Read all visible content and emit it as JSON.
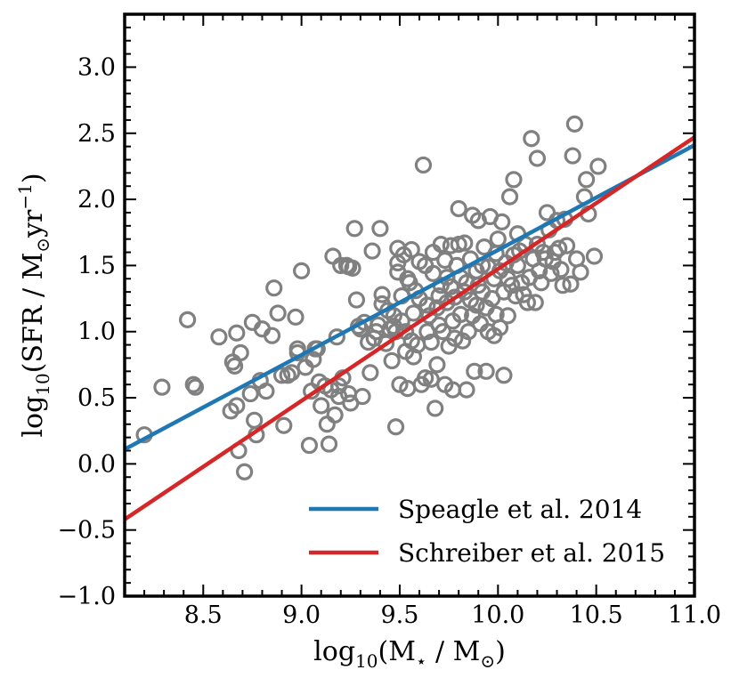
{
  "chart_data": {
    "type": "scatter",
    "xlabel": {
      "base": "log",
      "sub": "10",
      "body": "(M",
      "star": "⋆",
      "mid": " / M",
      "sun": "⊙",
      "end": ")"
    },
    "ylabel": {
      "base": "log",
      "sub": "10",
      "body": "(SFR / M",
      "sun": "⊙",
      "yr": "yr",
      "exp": "−1",
      "end": ")"
    },
    "xlim": [
      8.1,
      11.0
    ],
    "ylim": [
      -1.0,
      3.4
    ],
    "x_ticks": [
      {
        "value": 8.5,
        "label": "8.5"
      },
      {
        "value": 9.0,
        "label": "9.0"
      },
      {
        "value": 9.5,
        "label": "9.5"
      },
      {
        "value": 10.0,
        "label": "10.0"
      },
      {
        "value": 10.5,
        "label": "10.5"
      },
      {
        "value": 11.0,
        "label": "11.0"
      }
    ],
    "y_ticks": [
      {
        "value": -1.0,
        "label": "−1.0"
      },
      {
        "value": -0.5,
        "label": "−0.5"
      },
      {
        "value": 0.0,
        "label": "0.0"
      },
      {
        "value": 0.5,
        "label": "0.5"
      },
      {
        "value": 1.0,
        "label": "1.0"
      },
      {
        "value": 1.5,
        "label": "1.5"
      },
      {
        "value": 2.0,
        "label": "2.0"
      },
      {
        "value": 2.5,
        "label": "2.5"
      },
      {
        "value": 3.0,
        "label": "3.0"
      }
    ],
    "minor_step": 0.1,
    "marker_color": "#808080",
    "series": [
      {
        "name": "Speagle et al. 2014",
        "type": "line",
        "color": "#1f77b4",
        "x": [
          8.1,
          11.0
        ],
        "y": [
          0.11,
          2.41
        ]
      },
      {
        "name": "Schreiber et al. 2015",
        "type": "line",
        "color": "#d62728",
        "x": [
          8.1,
          11.0
        ],
        "y": [
          -0.42,
          2.47
        ]
      }
    ],
    "scatter_points": [
      [
        8.2,
        0.22
      ],
      [
        8.29,
        0.58
      ],
      [
        8.42,
        1.09
      ],
      [
        8.45,
        0.6
      ],
      [
        8.46,
        0.58
      ],
      [
        8.58,
        0.96
      ],
      [
        8.64,
        0.4
      ],
      [
        8.65,
        0.77
      ],
      [
        8.66,
        0.74
      ],
      [
        8.67,
        0.44
      ],
      [
        8.67,
        0.99
      ],
      [
        8.68,
        0.1
      ],
      [
        8.69,
        0.84
      ],
      [
        8.71,
        -0.06
      ],
      [
        8.74,
        0.53
      ],
      [
        8.75,
        1.07
      ],
      [
        8.76,
        0.33
      ],
      [
        8.77,
        0.22
      ],
      [
        8.79,
        0.63
      ],
      [
        8.8,
        1.02
      ],
      [
        8.82,
        0.55
      ],
      [
        8.85,
        0.97
      ],
      [
        8.86,
        1.33
      ],
      [
        8.88,
        1.14
      ],
      [
        8.9,
        0.67
      ],
      [
        8.91,
        0.29
      ],
      [
        8.93,
        0.67
      ],
      [
        8.95,
        0.69
      ],
      [
        8.97,
        1.11
      ],
      [
        8.98,
        0.84
      ],
      [
        8.98,
        0.87
      ],
      [
        9.0,
        1.46
      ],
      [
        9.02,
        0.73
      ],
      [
        9.04,
        0.14
      ],
      [
        9.05,
        0.55
      ],
      [
        9.06,
        0.79
      ],
      [
        9.07,
        0.87
      ],
      [
        9.08,
        0.87
      ],
      [
        9.09,
        0.62
      ],
      [
        9.1,
        0.44
      ],
      [
        9.12,
        0.59
      ],
      [
        9.13,
        0.3
      ],
      [
        9.14,
        0.15
      ],
      [
        9.15,
        0.56
      ],
      [
        9.16,
        1.57
      ],
      [
        9.17,
        0.37
      ],
      [
        9.18,
        0.96
      ],
      [
        9.19,
        0.51
      ],
      [
        9.19,
        0.59
      ],
      [
        9.2,
        1.5
      ],
      [
        9.21,
        0.65
      ],
      [
        9.23,
        1.5
      ],
      [
        9.24,
        1.49
      ],
      [
        9.24,
        0.53
      ],
      [
        9.25,
        0.46
      ],
      [
        9.26,
        1.48
      ],
      [
        9.27,
        1.78
      ],
      [
        9.28,
        1.24
      ],
      [
        9.29,
        1.04
      ],
      [
        9.3,
        1.02
      ],
      [
        9.31,
        0.51
      ],
      [
        9.32,
        1.07
      ],
      [
        9.34,
        0.92
      ],
      [
        9.35,
        0.69
      ],
      [
        9.36,
        1.61
      ],
      [
        9.37,
        0.95
      ],
      [
        9.38,
        1.0
      ],
      [
        9.39,
        1.05
      ],
      [
        9.4,
        1.78
      ],
      [
        9.41,
        1.28
      ],
      [
        9.41,
        1.21
      ],
      [
        9.43,
        0.91
      ],
      [
        9.44,
        1.16
      ],
      [
        9.45,
        1.02
      ],
      [
        9.46,
        0.78
      ],
      [
        9.47,
        1.04
      ],
      [
        9.47,
        1.12
      ],
      [
        9.48,
        0.28
      ],
      [
        9.48,
        1.0
      ],
      [
        9.49,
        1.45
      ],
      [
        9.49,
        1.63
      ],
      [
        9.49,
        1.52
      ],
      [
        9.5,
        0.6
      ],
      [
        9.51,
        1.08
      ],
      [
        9.51,
        1.27
      ],
      [
        9.52,
        1.58
      ],
      [
        9.53,
        1.0
      ],
      [
        9.53,
        0.85
      ],
      [
        9.54,
        1.4
      ],
      [
        9.54,
        0.57
      ],
      [
        9.55,
        1.37
      ],
      [
        9.56,
        0.93
      ],
      [
        9.56,
        1.62
      ],
      [
        9.57,
        1.14
      ],
      [
        9.57,
        0.81
      ],
      [
        9.58,
        1.31
      ],
      [
        9.59,
        0.9
      ],
      [
        9.6,
        1.53
      ],
      [
        9.6,
        1.25
      ],
      [
        9.61,
        0.6
      ],
      [
        9.62,
        2.26
      ],
      [
        9.63,
        1.5
      ],
      [
        9.63,
        0.65
      ],
      [
        9.64,
        1.2
      ],
      [
        9.64,
        1.0
      ],
      [
        9.65,
        1.12
      ],
      [
        9.66,
        0.64
      ],
      [
        9.66,
        0.92
      ],
      [
        9.67,
        1.44
      ],
      [
        9.67,
        1.6
      ],
      [
        9.68,
        0.42
      ],
      [
        9.69,
        1.18
      ],
      [
        9.69,
        0.75
      ],
      [
        9.7,
        1.27
      ],
      [
        9.7,
        1.05
      ],
      [
        9.71,
        1.35
      ],
      [
        9.71,
        1.66
      ],
      [
        9.72,
        1.0
      ],
      [
        9.73,
        1.54
      ],
      [
        9.73,
        0.6
      ],
      [
        9.74,
        1.41
      ],
      [
        9.74,
        1.22
      ],
      [
        9.75,
        0.89
      ],
      [
        9.76,
        1.65
      ],
      [
        9.76,
        1.34
      ],
      [
        9.77,
        0.56
      ],
      [
        9.77,
        1.08
      ],
      [
        9.78,
        0.95
      ],
      [
        9.78,
        1.26
      ],
      [
        9.79,
        1.5
      ],
      [
        9.8,
        1.93
      ],
      [
        9.8,
        1.66
      ],
      [
        9.81,
        1.41
      ],
      [
        9.81,
        1.13
      ],
      [
        9.82,
        0.93
      ],
      [
        9.83,
        1.3
      ],
      [
        9.83,
        1.67
      ],
      [
        9.84,
        0.56
      ],
      [
        9.84,
        1.37
      ],
      [
        9.85,
        1.0
      ],
      [
        9.86,
        1.24
      ],
      [
        9.86,
        1.55
      ],
      [
        9.87,
        1.12
      ],
      [
        9.87,
        1.88
      ],
      [
        9.88,
        0.7
      ],
      [
        9.89,
        1.46
      ],
      [
        9.89,
        1.2
      ],
      [
        9.9,
        1.35
      ],
      [
        9.9,
        1.84
      ],
      [
        9.91,
        1.06
      ],
      [
        9.92,
        1.5
      ],
      [
        9.92,
        1.3
      ],
      [
        9.93,
        1.64
      ],
      [
        9.94,
        0.7
      ],
      [
        9.94,
        1.18
      ],
      [
        9.95,
        1.49
      ],
      [
        9.95,
        1.0
      ],
      [
        9.96,
        1.87
      ],
      [
        9.97,
        1.25
      ],
      [
        9.98,
        0.97
      ],
      [
        9.98,
        1.4
      ],
      [
        9.99,
        1.59
      ],
      [
        9.99,
        1.13
      ],
      [
        10.0,
        1.7
      ],
      [
        10.01,
        1.46
      ],
      [
        10.01,
        1.03
      ],
      [
        10.02,
        1.83
      ],
      [
        10.03,
        0.67
      ],
      [
        10.03,
        1.3
      ],
      [
        10.04,
        1.52
      ],
      [
        10.05,
        1.12
      ],
      [
        10.05,
        1.4
      ],
      [
        10.06,
        2.02
      ],
      [
        10.07,
        1.35
      ],
      [
        10.08,
        1.58
      ],
      [
        10.08,
        2.15
      ],
      [
        10.09,
        1.27
      ],
      [
        10.1,
        1.74
      ],
      [
        10.1,
        1.5
      ],
      [
        10.11,
        1.61
      ],
      [
        10.12,
        1.37
      ],
      [
        10.13,
        1.28
      ],
      [
        10.14,
        1.66
      ],
      [
        10.15,
        1.22
      ],
      [
        10.16,
        1.41
      ],
      [
        10.17,
        2.46
      ],
      [
        10.18,
        1.55
      ],
      [
        10.19,
        1.22
      ],
      [
        10.2,
        1.66
      ],
      [
        10.2,
        2.31
      ],
      [
        10.21,
        1.46
      ],
      [
        10.22,
        1.37
      ],
      [
        10.23,
        1.6
      ],
      [
        10.24,
        1.55
      ],
      [
        10.25,
        1.9
      ],
      [
        10.26,
        1.77
      ],
      [
        10.27,
        1.44
      ],
      [
        10.28,
        1.53
      ],
      [
        10.29,
        1.6
      ],
      [
        10.3,
        1.84
      ],
      [
        10.31,
        1.63
      ],
      [
        10.32,
        1.47
      ],
      [
        10.33,
        1.35
      ],
      [
        10.34,
        1.85
      ],
      [
        10.35,
        1.65
      ],
      [
        10.37,
        1.36
      ],
      [
        10.38,
        2.33
      ],
      [
        10.39,
        2.57
      ],
      [
        10.4,
        1.55
      ],
      [
        10.42,
        1.45
      ],
      [
        10.44,
        2.02
      ],
      [
        10.45,
        2.15
      ],
      [
        10.46,
        1.89
      ],
      [
        10.49,
        1.57
      ],
      [
        10.51,
        2.25
      ]
    ]
  }
}
